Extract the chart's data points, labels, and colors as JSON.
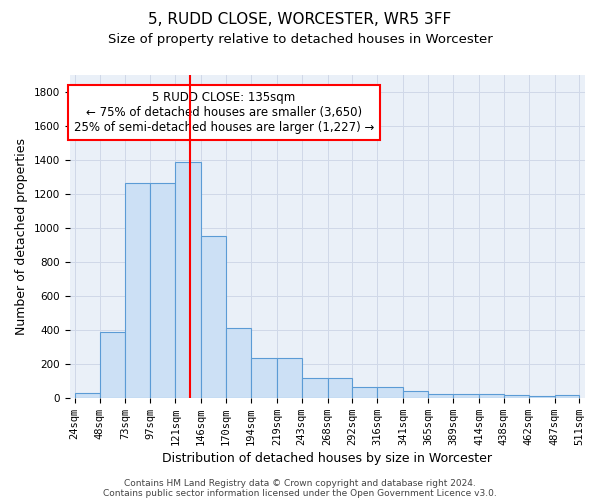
{
  "title1": "5, RUDD CLOSE, WORCESTER, WR5 3FF",
  "title2": "Size of property relative to detached houses in Worcester",
  "xlabel": "Distribution of detached houses by size in Worcester",
  "ylabel": "Number of detached properties",
  "bin_edges": [
    24,
    48,
    73,
    97,
    121,
    146,
    170,
    194,
    219,
    243,
    268,
    292,
    316,
    341,
    365,
    389,
    414,
    438,
    462,
    487,
    511
  ],
  "bar_heights": [
    30,
    390,
    1265,
    1265,
    1390,
    950,
    410,
    235,
    235,
    115,
    115,
    65,
    65,
    40,
    25,
    20,
    20,
    15,
    10,
    15
  ],
  "bar_color": "#cce0f5",
  "bar_edgecolor": "#5b9bd5",
  "vline_x": 135,
  "vline_color": "red",
  "annotation_lines": [
    "5 RUDD CLOSE: 135sqm",
    "← 75% of detached houses are smaller (3,650)",
    "25% of semi-detached houses are larger (1,227) →"
  ],
  "annotation_box_color": "white",
  "annotation_box_edgecolor": "red",
  "ylim": [
    0,
    1900
  ],
  "yticks": [
    0,
    200,
    400,
    600,
    800,
    1000,
    1200,
    1400,
    1600,
    1800
  ],
  "grid_color": "#d0d8e8",
  "background_color": "#eaf0f8",
  "footer_line1": "Contains HM Land Registry data © Crown copyright and database right 2024.",
  "footer_line2": "Contains public sector information licensed under the Open Government Licence v3.0.",
  "title1_fontsize": 11,
  "title2_fontsize": 9.5,
  "xlabel_fontsize": 9,
  "ylabel_fontsize": 9,
  "tick_fontsize": 7.5,
  "annotation_fontsize": 8.5,
  "footer_fontsize": 6.5
}
